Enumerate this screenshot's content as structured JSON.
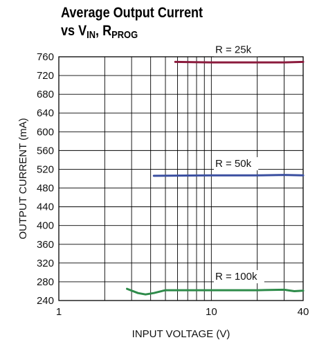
{
  "chart_data": {
    "type": "line",
    "title_line1": "Average Output Current",
    "title_line2": {
      "prefix": "vs V",
      "sub1": "IN",
      "mid": ", R",
      "sub2": "PROG"
    },
    "xlabel": "INPUT VOLTAGE (V)",
    "ylabel": "OUTPUT CURRENT (mA)",
    "x_scale": "log",
    "xlim": [
      1,
      40
    ],
    "ylim": [
      240,
      760
    ],
    "x_tick_labels": [
      {
        "value": 1,
        "label": "1"
      },
      {
        "value": 10,
        "label": "10"
      },
      {
        "value": 40,
        "label": "40"
      }
    ],
    "y_ticks": [
      240,
      280,
      320,
      360,
      400,
      440,
      480,
      520,
      560,
      600,
      640,
      680,
      720,
      760
    ],
    "grid": true,
    "series": [
      {
        "name": "R = 25k",
        "color": "#8b1a3c",
        "x": [
          5.8,
          10,
          20,
          30,
          40
        ],
        "y": [
          749,
          748,
          748,
          748,
          749
        ]
      },
      {
        "name": "R = 50k",
        "color": "#3a4fa0",
        "x": [
          4.2,
          10,
          20,
          30,
          40
        ],
        "y": [
          506,
          507,
          507,
          508,
          507
        ]
      },
      {
        "name": "R = 100k",
        "color": "#2e8b4a",
        "x": [
          2.8,
          3.3,
          3.7,
          4.2,
          5,
          10,
          20,
          30,
          35,
          40
        ],
        "y": [
          265,
          256,
          253,
          256,
          262,
          262,
          262,
          263,
          260,
          261
        ]
      }
    ]
  }
}
